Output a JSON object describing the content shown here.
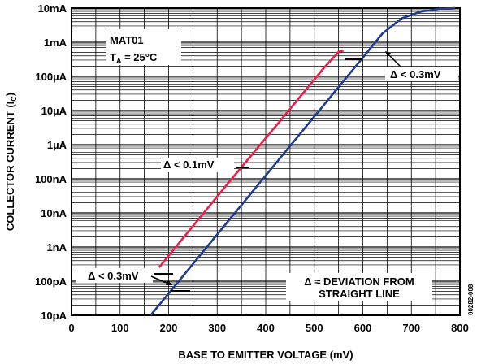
{
  "chart_data": {
    "type": "line",
    "xlabel": "BASE TO EMITTER VOLTAGE (mV)",
    "ylabel_main": "COLLECTOR CURRENT (I",
    "ylabel_sub": "C",
    "ylabel_end": ")",
    "xlim": [
      0,
      800
    ],
    "ylim_log10": [
      -11,
      -2
    ],
    "x_ticks": [
      {
        "value": 0,
        "label": "0"
      },
      {
        "value": 100,
        "label": "100"
      },
      {
        "value": 200,
        "label": "200"
      },
      {
        "value": 300,
        "label": "300"
      },
      {
        "value": 400,
        "label": "400"
      },
      {
        "value": 500,
        "label": "500"
      },
      {
        "value": 600,
        "label": "600"
      },
      {
        "value": 700,
        "label": "700"
      },
      {
        "value": 800,
        "label": "800"
      }
    ],
    "y_ticks": [
      {
        "log10": -2,
        "label": "10mA"
      },
      {
        "log10": -3,
        "label": "1mA"
      },
      {
        "log10": -4,
        "label": "100µA"
      },
      {
        "log10": -5,
        "label": "10µA"
      },
      {
        "log10": -6,
        "label": "1µA"
      },
      {
        "log10": -7,
        "label": "100nA"
      },
      {
        "log10": -8,
        "label": "10nA"
      },
      {
        "log10": -9,
        "label": "1nA"
      },
      {
        "log10": -10,
        "label": "100pA"
      },
      {
        "log10": -11,
        "label": "10pA"
      }
    ],
    "grid": true,
    "series": [
      {
        "color": "#e8204a",
        "points": [
          [
            180,
            -9.6
          ],
          [
            330,
            -7.0
          ],
          [
            430,
            -5.3
          ],
          [
            520,
            -3.75
          ],
          [
            550,
            -3.28
          ],
          [
            560,
            -3.25
          ]
        ]
      },
      {
        "color": "#1f3c8f",
        "points": [
          [
            163,
            -11.0
          ],
          [
            600,
            -3.45
          ],
          [
            640,
            -2.75
          ],
          [
            680,
            -2.3
          ],
          [
            720,
            -2.1
          ],
          [
            760,
            -2.02
          ],
          [
            790,
            -2.0
          ]
        ]
      }
    ],
    "annotations": {
      "device": "MAT01",
      "temp_main": "T",
      "temp_sub": "A",
      "temp_rest": " = 25°C",
      "delta_mid": "Δ < 0.1mV",
      "delta_low": "Δ < 0.3mV",
      "delta_high": "Δ < 0.3mV",
      "legend_line1": "Δ ≈ DEVIATION FROM",
      "legend_line2": "STRAIGHT LINE",
      "figure_id": "00282-008"
    }
  }
}
